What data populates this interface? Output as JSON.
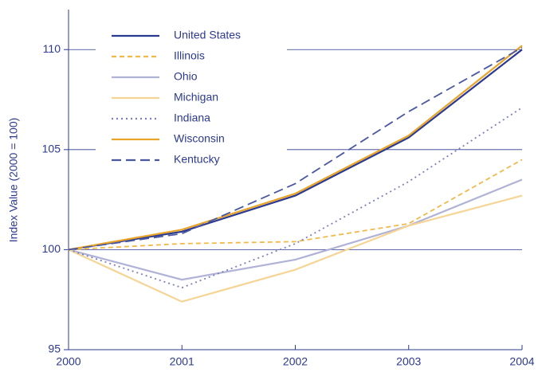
{
  "chart_data": {
    "type": "line",
    "y_label": "Index Value (2000 = 100)",
    "x": [
      2000,
      2001,
      2002,
      2003,
      2004
    ],
    "xlim": [
      2000,
      2004
    ],
    "xticks": [
      2000,
      2001,
      2002,
      2003,
      2004
    ],
    "ylim": [
      95,
      112
    ],
    "yticks": [
      95,
      100,
      105,
      110
    ],
    "grid": true,
    "legend": "upper left",
    "series": [
      {
        "name": "United States",
        "color": "#2b3990",
        "style": "solid",
        "values": [
          100,
          100.9,
          102.7,
          105.6,
          110.0
        ]
      },
      {
        "name": "Illinois",
        "color": "#f0b94a",
        "style": "dashed",
        "values": [
          100,
          100.3,
          100.4,
          101.3,
          104.5
        ]
      },
      {
        "name": "Ohio",
        "color": "#b0b2d6",
        "style": "solid",
        "values": [
          100,
          98.5,
          99.5,
          101.2,
          103.5
        ]
      },
      {
        "name": "Michigan",
        "color": "#f5d595",
        "style": "solid",
        "values": [
          100,
          97.4,
          99.0,
          101.2,
          102.7
        ]
      },
      {
        "name": "Indiana",
        "color": "#7d7fbd",
        "style": "dotted",
        "values": [
          100,
          98.1,
          100.3,
          103.4,
          107.1
        ]
      },
      {
        "name": "Wisconsin",
        "color": "#e8a528",
        "style": "solid",
        "values": [
          100,
          101.0,
          102.8,
          105.7,
          110.2
        ]
      },
      {
        "name": "Kentucky",
        "color": "#4a58a0",
        "style": "longdash",
        "values": [
          100,
          100.8,
          103.3,
          106.9,
          110.1
        ]
      }
    ]
  }
}
